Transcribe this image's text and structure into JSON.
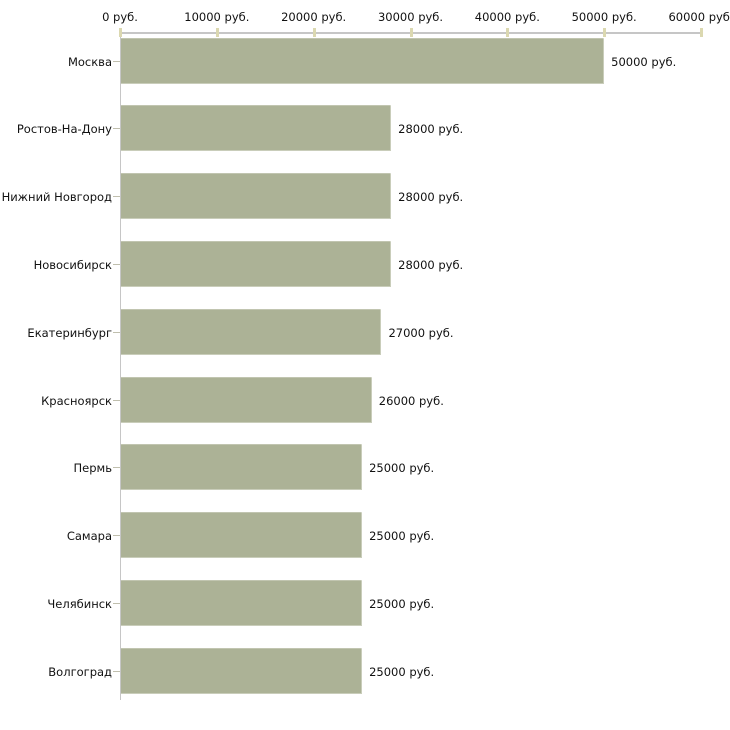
{
  "chart_data": {
    "type": "bar",
    "orientation": "horizontal",
    "title": "",
    "xlabel": "",
    "ylabel": "",
    "categories": [
      "Москва",
      "Ростов-На-Дону",
      "Нижний Новгород",
      "Новосибирск",
      "Екатеринбург",
      "Красноярск",
      "Пермь",
      "Самара",
      "Челябинск",
      "Волгоград"
    ],
    "values": [
      50000,
      28000,
      28000,
      28000,
      27000,
      26000,
      25000,
      25000,
      25000,
      25000
    ],
    "value_labels": [
      "50000 руб.",
      "28000 руб.",
      "28000 руб.",
      "28000 руб.",
      "27000 руб.",
      "26000 руб.",
      "25000 руб.",
      "25000 руб.",
      "25000 руб.",
      "25000 руб."
    ],
    "x_axis": {
      "position": "top",
      "xlim": [
        0,
        60000
      ],
      "ticks": [
        0,
        10000,
        20000,
        30000,
        40000,
        50000,
        60000
      ],
      "tick_labels": [
        "0 руб.",
        "10000 руб.",
        "20000 руб.",
        "30000 руб.",
        "40000 руб.",
        "50000 руб.",
        "60000 руб."
      ]
    },
    "grid": false,
    "legend": "none",
    "colors": {
      "bar": "#acb296",
      "axis_line": "#c6c6c6",
      "tick_mark": "#dbd8b0",
      "y_tick_dash": "#c0bfae",
      "text": "#111111",
      "background": "#ffffff"
    }
  }
}
